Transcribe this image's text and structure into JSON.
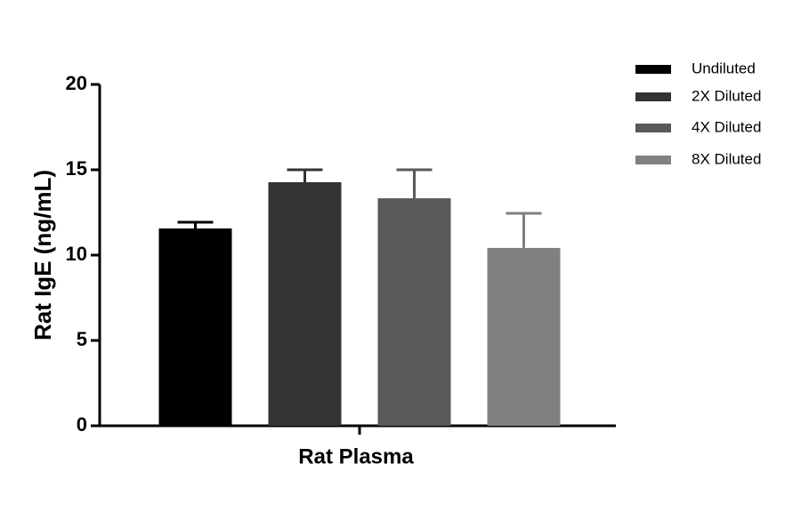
{
  "chart_data": {
    "type": "bar",
    "x_label": "Rat Plasma",
    "y_label": "Rat IgE (ng/mL)",
    "categories": [
      "Rat Plasma"
    ],
    "series": [
      {
        "name": "Undiluted",
        "color": "#000000",
        "values": [
          11.56
        ],
        "errors": [
          0.37
        ]
      },
      {
        "name": "2X Diluted",
        "color": "#333333",
        "values": [
          14.27
        ],
        "errors": [
          0.73
        ]
      },
      {
        "name": "4X Diluted",
        "color": "#595959",
        "values": [
          13.33
        ],
        "errors": [
          1.67
        ]
      },
      {
        "name": "8X Diluted",
        "color": "#808080",
        "values": [
          10.42
        ],
        "errors": [
          2.03
        ]
      }
    ],
    "ylim": [
      0,
      20
    ],
    "yticks": [
      0,
      5,
      10,
      15,
      20
    ],
    "legend": "right"
  }
}
